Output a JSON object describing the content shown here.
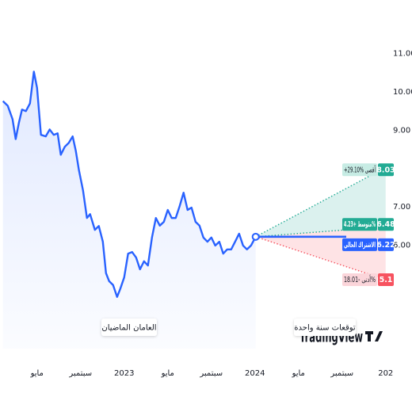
{
  "chart_data": {
    "type": "line",
    "series": [
      {
        "color": "#2962ff",
        "x": [
          0.87,
          1.31,
          1.75,
          2.04,
          2.33,
          2.62,
          2.98,
          3.35,
          3.71,
          4.0,
          4.36,
          4.8,
          5.16,
          5.53,
          5.89,
          6.18,
          6.55,
          6.91,
          7.27,
          7.56,
          7.85,
          8.22,
          8.58,
          8.87,
          9.31,
          9.67,
          10.04,
          10.33,
          10.62,
          10.98,
          11.35,
          11.64,
          12.0,
          12.36,
          12.73,
          13.09,
          13.45,
          13.82,
          14.18,
          14.55,
          14.91,
          15.27,
          15.64,
          16.0,
          16.36,
          16.73,
          17.09,
          17.45,
          17.82,
          18.18,
          18.55,
          18.91,
          19.27,
          19.64,
          20.0,
          20.36,
          20.73,
          21.09,
          21.45,
          21.82,
          22.18,
          22.55,
          22.91,
          23.27,
          23.64,
          24.07
        ],
        "values": [
          9.76,
          9.64,
          9.29,
          8.77,
          9.19,
          9.54,
          9.5,
          9.7,
          10.53,
          10.11,
          8.88,
          8.84,
          9.02,
          8.88,
          8.92,
          8.36,
          8.57,
          8.67,
          8.84,
          8.46,
          7.95,
          7.43,
          6.71,
          6.81,
          6.4,
          6.5,
          6.09,
          5.27,
          5.06,
          4.96,
          4.65,
          4.86,
          5.16,
          5.78,
          5.82,
          5.68,
          5.37,
          5.58,
          5.47,
          6.2,
          6.71,
          6.51,
          6.61,
          6.92,
          6.71,
          6.71,
          7.02,
          7.37,
          6.92,
          6.98,
          6.61,
          6.51,
          6.2,
          6.09,
          6.2,
          5.99,
          6.09,
          5.78,
          5.89,
          5.89,
          6.09,
          6.3,
          5.99,
          5.89,
          5.99,
          6.22
        ]
      }
    ],
    "forecast_x": 36,
    "forecast": [
      {
        "label": "+29.10% أقصى",
        "value": 8.03,
        "color": "#22ab94"
      },
      {
        "label": "متوسط +4.23%",
        "value": 6.48,
        "color": "#22ab94"
      },
      {
        "label": "أدنى -18.01%",
        "value": 5.1,
        "color": "#f7525f"
      }
    ],
    "current_label": "الاشتراك الحالي",
    "history_label": "العامان الماضيان",
    "forecast_label": "توقعات سنة واحدة",
    "watermark": "TradingView",
    "xlim": [
      0.6,
      36.6
    ],
    "xticks": [
      {
        "value": 4,
        "label": "مايو"
      },
      {
        "value": 8,
        "label": "سبتمبر"
      },
      {
        "value": 12,
        "label": "2023"
      },
      {
        "value": 16,
        "label": "مايو"
      },
      {
        "value": 20,
        "label": "سبتمبر"
      },
      {
        "value": 24,
        "label": "2024"
      },
      {
        "value": 28,
        "label": "مايو"
      },
      {
        "value": 32,
        "label": "سبتمبر"
      },
      {
        "value": 36,
        "label": "202"
      }
    ],
    "ylim": [
      3.3,
      12.4
    ],
    "yticks": [
      {
        "value": 11,
        "label": "11.00"
      },
      {
        "value": 10,
        "label": "10.00"
      },
      {
        "value": 9,
        "label": "9.00"
      },
      {
        "value": 7,
        "label": "7.00"
      },
      {
        "value": 6,
        "label": "6.00"
      }
    ]
  }
}
